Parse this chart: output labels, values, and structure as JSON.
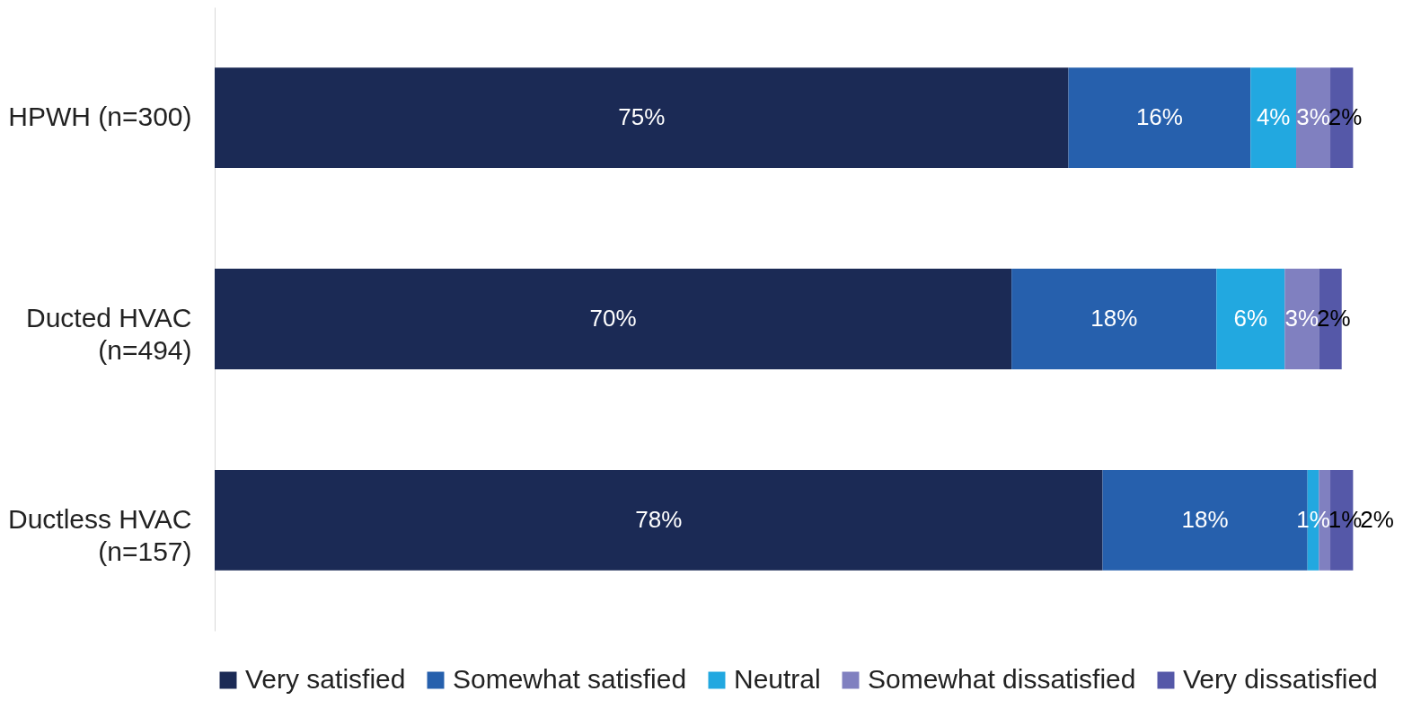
{
  "chart_data": {
    "type": "bar",
    "orientation": "horizontal",
    "stacked": true,
    "legend": "bottom",
    "tick_labels": "y",
    "categories": [
      "HPWH (n=300)",
      "Ducted HVAC (n=494)",
      "Ductless HVAC (n=157)"
    ],
    "series": [
      {
        "name": "Very satisfied",
        "color": "#1b2a55",
        "values": [
          75,
          70,
          78
        ],
        "value_labels": [
          "75%",
          "70%",
          "78%"
        ]
      },
      {
        "name": "Somewhat satisfied",
        "color": "#2660ad",
        "values": [
          16,
          18,
          18
        ],
        "value_labels": [
          "16%",
          "18%",
          "18%"
        ]
      },
      {
        "name": "Neutral",
        "color": "#22a8e0",
        "values": [
          4,
          6,
          1
        ],
        "value_labels": [
          "4%",
          "6%",
          "1%"
        ]
      },
      {
        "name": "Somewhat dissatisfied",
        "color": "#8080c0",
        "values": [
          3,
          3,
          1
        ],
        "value_labels": [
          "3%",
          "3%",
          "1%"
        ]
      },
      {
        "name": "Very dissatisfied",
        "color": "#5558a8",
        "values": [
          2,
          2,
          2
        ],
        "value_labels": [
          "2%",
          "2%",
          "2%"
        ]
      }
    ]
  }
}
